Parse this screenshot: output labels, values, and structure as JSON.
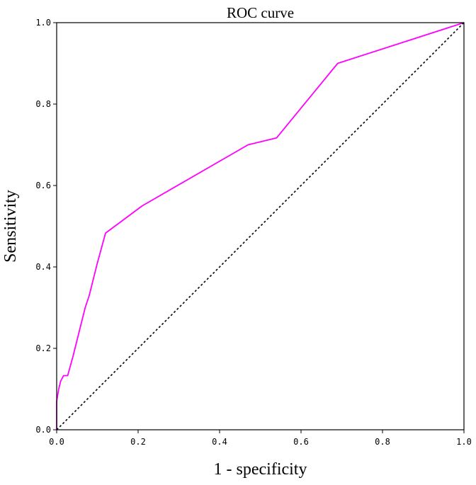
{
  "chart_data": {
    "type": "line",
    "title": "ROC curve",
    "xlabel": "1 - specificity",
    "ylabel": "Sensitivity",
    "xlim": [
      0,
      1
    ],
    "ylim": [
      0,
      1
    ],
    "xticks": [
      "0.0",
      "0.2",
      "0.4",
      "0.6",
      "0.8",
      "1.0"
    ],
    "yticks": [
      "0.0",
      "0.2",
      "0.4",
      "0.6",
      "0.8",
      "1.0"
    ],
    "grid": false,
    "legend": "none",
    "series": [
      {
        "color": "#ff00ff",
        "style": "solid",
        "x": [
          0.0,
          0.0,
          0.005,
          0.01,
          0.017,
          0.027,
          0.04,
          0.05,
          0.06,
          0.07,
          0.08,
          0.085,
          0.09,
          0.1,
          0.12,
          0.21,
          0.47,
          0.54,
          0.69,
          1.0
        ],
        "y": [
          0.0,
          0.07,
          0.1,
          0.12,
          0.133,
          0.133,
          0.18,
          0.22,
          0.26,
          0.3,
          0.33,
          0.35,
          0.37,
          0.41,
          0.483,
          0.55,
          0.7,
          0.717,
          0.9,
          1.0
        ]
      },
      {
        "color": "#000000",
        "style": "dotted",
        "x": [
          0,
          1
        ],
        "y": [
          0,
          1
        ]
      }
    ]
  }
}
